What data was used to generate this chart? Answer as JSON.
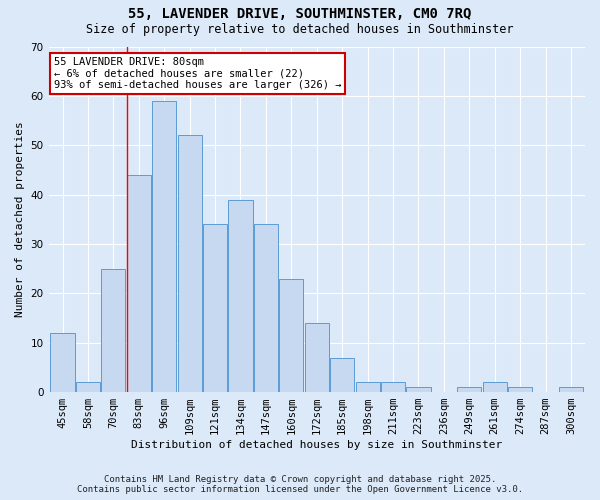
{
  "title1": "55, LAVENDER DRIVE, SOUTHMINSTER, CM0 7RQ",
  "title2": "Size of property relative to detached houses in Southminster",
  "xlabel": "Distribution of detached houses by size in Southminster",
  "ylabel": "Number of detached properties",
  "categories": [
    "45sqm",
    "58sqm",
    "70sqm",
    "83sqm",
    "96sqm",
    "109sqm",
    "121sqm",
    "134sqm",
    "147sqm",
    "160sqm",
    "172sqm",
    "185sqm",
    "198sqm",
    "211sqm",
    "223sqm",
    "236sqm",
    "249sqm",
    "261sqm",
    "274sqm",
    "287sqm",
    "300sqm"
  ],
  "values": [
    12,
    2,
    25,
    44,
    59,
    52,
    34,
    39,
    34,
    23,
    14,
    7,
    2,
    2,
    1,
    0,
    1,
    2,
    1,
    0,
    1
  ],
  "bar_color": "#c6d9f0",
  "bar_edge_color": "#5b9bd5",
  "background_color": "#dce9f8",
  "grid_color": "#ffffff",
  "red_line_x": 2.55,
  "annotation_text": "55 LAVENDER DRIVE: 80sqm\n← 6% of detached houses are smaller (22)\n93% of semi-detached houses are larger (326) →",
  "annotation_box_color": "#ffffff",
  "annotation_box_edge_color": "#cc0000",
  "footer1": "Contains HM Land Registry data © Crown copyright and database right 2025.",
  "footer2": "Contains public sector information licensed under the Open Government Licence v3.0.",
  "ylim": [
    0,
    70
  ],
  "yticks": [
    0,
    10,
    20,
    30,
    40,
    50,
    60,
    70
  ],
  "title_fontsize": 10,
  "subtitle_fontsize": 8.5,
  "axis_label_fontsize": 8,
  "tick_fontsize": 7.5,
  "annotation_fontsize": 7.5,
  "footer_fontsize": 6.5
}
